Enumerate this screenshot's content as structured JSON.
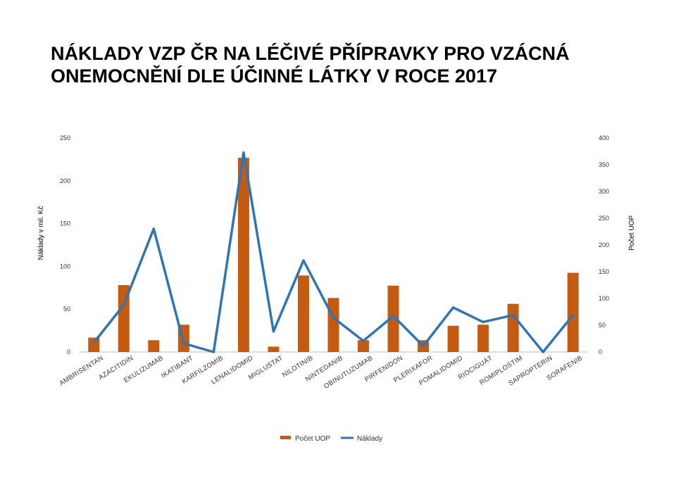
{
  "chart_data": {
    "type": "bar",
    "title_lines": [
      "NÁKLADY VZP ČR NA LÉČIVÉ PŘÍPRAVKY PRO VZÁCNÁ",
      "ONEMOCNĚNÍ DLE ÚČINNÉ LÁTKY V ROCE 2017"
    ],
    "categories": [
      "AMBRISENTAN",
      "AZACITIDIN",
      "EKULIZUMAB",
      "IKATIBANT",
      "KARFILZOMIB",
      "LENALIDOMID",
      "MIGLUSTAT",
      "NILOTINIB",
      "NINTEDANIB",
      "OBINUTUZUMAB",
      "PIRFENIDON",
      "PLERIXAFOR",
      "POMALIDOMID",
      "RIOCIGUÁT",
      "ROMIPLOSTIM",
      "SAPROPTERIN",
      "SORAFENIB"
    ],
    "ylabel_left": "Náklady v mil. Kč",
    "ylabel_right": "Počet UOP",
    "ylim_left": [
      0,
      250
    ],
    "ylim_right": [
      0,
      400
    ],
    "yticks_left": [
      0,
      50,
      100,
      150,
      200,
      250
    ],
    "yticks_right": [
      0,
      50,
      100,
      150,
      200,
      250,
      300,
      350,
      400
    ],
    "series": [
      {
        "name": "Počet UOP",
        "kind": "bar",
        "axis": "right",
        "color": "#C55A11",
        "values": [
          27,
          125,
          22,
          51,
          0,
          363,
          10,
          143,
          101,
          22,
          124,
          22,
          49,
          51,
          90,
          0,
          148
        ]
      },
      {
        "name": "Náklady",
        "kind": "line",
        "axis": "left",
        "color": "#2E75B6",
        "values": [
          11,
          55,
          144,
          10,
          0,
          233,
          24,
          107,
          40,
          13,
          42,
          7,
          52,
          35,
          43,
          0,
          43
        ]
      }
    ],
    "legend_position": "bottom-center",
    "grid": false
  }
}
